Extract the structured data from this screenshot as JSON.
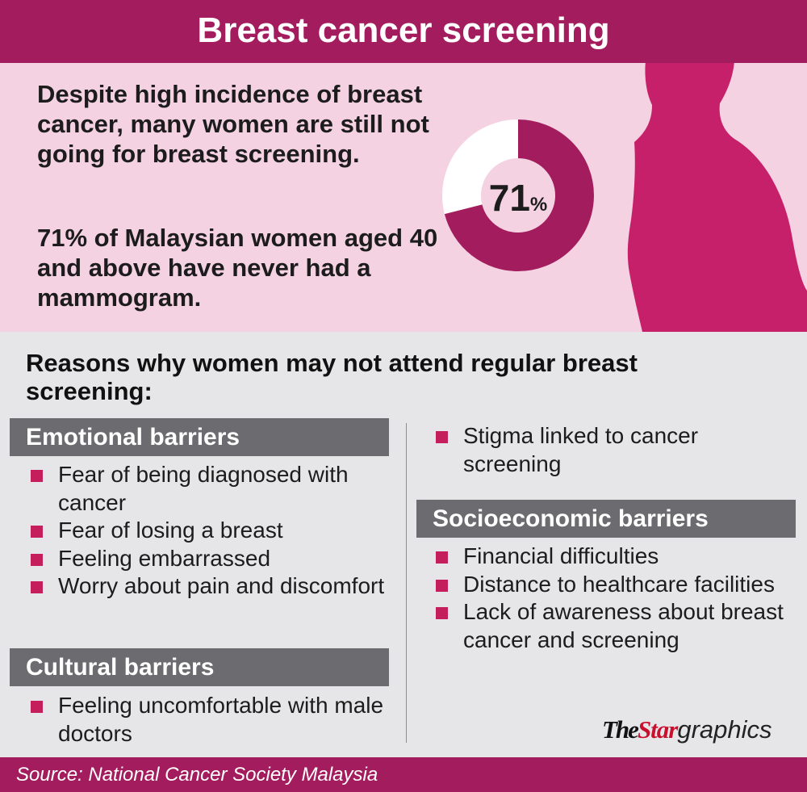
{
  "title": "Breast cancer screening",
  "intro": {
    "statement": "Despite high incidence of breast cancer, many women are still not going for breast screening.",
    "stat_text": "71% of Malaysian women aged 40 and above have never had a mammogram."
  },
  "donut": {
    "value": "71",
    "unit": "%",
    "fraction": 0.71
  },
  "reasons_heading": "Reasons why women may not attend regular breast screening:",
  "categories": {
    "emotional": {
      "title": "Emotional barriers",
      "items": [
        "Fear of being diagnosed with cancer",
        "Fear of losing a breast",
        "Feeling embarrassed",
        "Worry about pain and discomfort"
      ]
    },
    "cultural": {
      "title": "Cultural barriers",
      "items": [
        "Feeling uncomfortable with male doctors",
        "Stigma linked to cancer screening"
      ]
    },
    "socioeconomic": {
      "title": "Socioeconomic barriers",
      "items": [
        "Financial difficulties",
        "Distance to healthcare facilities",
        "Lack of awareness about breast cancer and screening"
      ]
    }
  },
  "brand": {
    "the": "The",
    "star": "Star",
    "graphics": "graphics"
  },
  "source": "Source: National Cancer Society Malaysia",
  "colors": {
    "accent": "#a31c5e",
    "bullet": "#c41e5d",
    "panel": "#f5d2e2",
    "background": "#e6e6e8",
    "category_bar": "#6b6b70"
  }
}
